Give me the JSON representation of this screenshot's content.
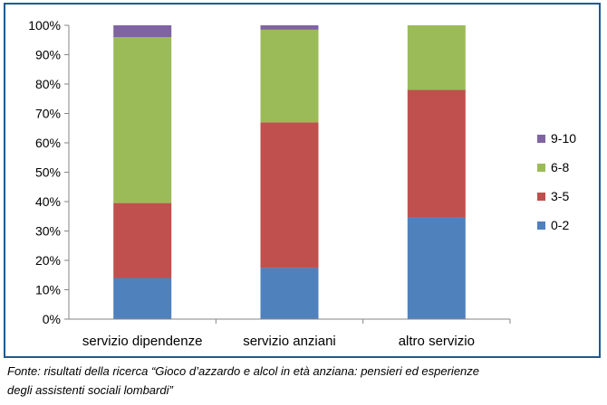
{
  "chart_data": {
    "type": "bar",
    "stacked": true,
    "categories": [
      "servizio dipendenze",
      "servizio anziani",
      "altro servizio"
    ],
    "series": [
      {
        "name": "0-2",
        "color": "#4f81bd",
        "values": [
          14,
          17.5,
          34.5
        ]
      },
      {
        "name": "3-5",
        "color": "#c0504d",
        "values": [
          25.5,
          49.5,
          43.5
        ]
      },
      {
        "name": "6-8",
        "color": "#9bbb59",
        "values": [
          56.5,
          31.5,
          22
        ]
      },
      {
        "name": "9-10",
        "color": "#8064a2",
        "values": [
          4,
          1.5,
          0
        ]
      }
    ],
    "y_ticks": [
      "0%",
      "10%",
      "20%",
      "30%",
      "40%",
      "50%",
      "60%",
      "70%",
      "80%",
      "90%",
      "100%"
    ],
    "ylim": [
      0,
      100
    ],
    "grid": false,
    "legend_position": "right"
  },
  "footer": {
    "source_line1": "Fonte: risultati della ricerca “Gioco d’azzardo e alcol in età anziana: pensieri ed esperienze",
    "source_line2": "degli assistenti sociali lombardi”"
  }
}
